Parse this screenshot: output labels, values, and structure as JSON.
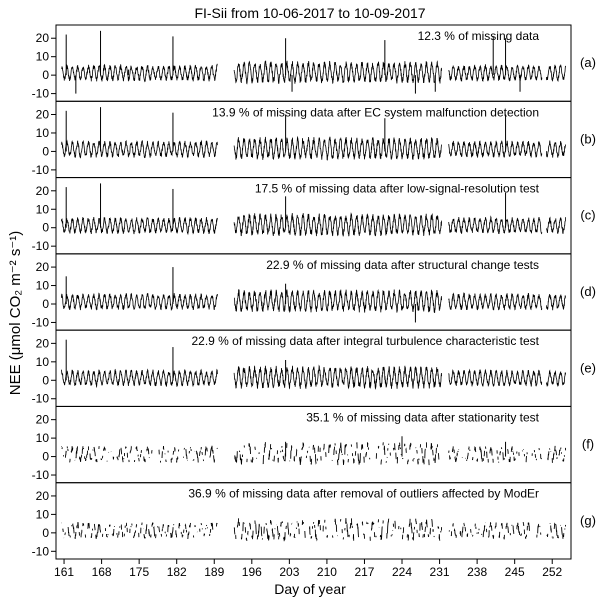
{
  "figure": {
    "title": "FI-Sii from 10-06-2017 to 10-09-2017",
    "ylabel": "NEE (μmol CO₂ m⁻² s⁻¹)",
    "xlabel": "Day of year"
  },
  "chart_data": {
    "type": "line",
    "title": "FI-Sii from 10-06-2017 to 10-09-2017",
    "xlabel": "Day of year",
    "ylabel": "NEE (μmol CO₂ m⁻² s⁻¹)",
    "xlim": [
      159.5,
      255.5
    ],
    "ylim": [
      -12,
      25
    ],
    "x_ticks": [
      161,
      168,
      175,
      182,
      189,
      196,
      203,
      210,
      217,
      224,
      231,
      238,
      245,
      252
    ],
    "y_ticks": [
      -10,
      0,
      10,
      20
    ],
    "gaps": [
      [
        189.6,
        192.7
      ],
      [
        231.4,
        232.7
      ],
      [
        250.1,
        250.9
      ]
    ],
    "panels": [
      {
        "label": "(a)",
        "annotation": "12.3 % of missing data",
        "missing_pct": 12.3,
        "mode": "raw",
        "spikes": [
          [
            161.4,
            22
          ],
          [
            163.2,
            -10
          ],
          [
            167.8,
            24
          ],
          [
            173.0,
            3
          ],
          [
            181.3,
            21
          ],
          [
            202.3,
            20
          ],
          [
            203.5,
            -9
          ],
          [
            220.8,
            19
          ],
          [
            226.5,
            -10
          ],
          [
            230.2,
            -9
          ],
          [
            241.0,
            21
          ],
          [
            243.3,
            20
          ],
          [
            246.0,
            -9
          ]
        ]
      },
      {
        "label": "(b)",
        "annotation": "13.9 % of missing data after EC system malfunction detection",
        "missing_pct": 13.9,
        "mode": "raw",
        "spikes": [
          [
            161.4,
            22
          ],
          [
            167.8,
            24
          ],
          [
            181.3,
            21
          ],
          [
            202.3,
            20
          ],
          [
            220.8,
            18
          ],
          [
            243.3,
            20
          ]
        ]
      },
      {
        "label": "(c)",
        "annotation": "17.5 % of missing data after low-signal-resolution test",
        "missing_pct": 17.5,
        "mode": "raw",
        "spikes": [
          [
            161.4,
            22
          ],
          [
            167.8,
            24
          ],
          [
            181.3,
            21
          ],
          [
            202.3,
            17
          ],
          [
            243.3,
            19
          ]
        ]
      },
      {
        "label": "(d)",
        "annotation": "22.9 % of missing data after structural change tests",
        "missing_pct": 22.9,
        "mode": "raw",
        "spikes": [
          [
            161.4,
            15
          ],
          [
            181.3,
            20
          ],
          [
            202.3,
            11
          ],
          [
            226.5,
            -10
          ]
        ]
      },
      {
        "label": "(e)",
        "annotation": "22.9 % of missing data after integral turbulence characteristic test",
        "missing_pct": 22.9,
        "mode": "raw",
        "spikes": [
          [
            161.4,
            22
          ],
          [
            181.3,
            18
          ],
          [
            202.3,
            11
          ]
        ]
      },
      {
        "label": "(f)",
        "annotation": "35.1 % of missing data after stationarity test",
        "missing_pct": 35.1,
        "mode": "sparse",
        "spikes": [
          [
            202.3,
            8
          ],
          [
            224.0,
            11
          ],
          [
            243.3,
            8
          ]
        ]
      },
      {
        "label": "(g)",
        "annotation": "36.9 % of missing data after removal of outliers affected by ModEr",
        "missing_pct": 36.9,
        "mode": "sparse",
        "spikes": []
      }
    ],
    "grid": false,
    "legend": "none"
  }
}
